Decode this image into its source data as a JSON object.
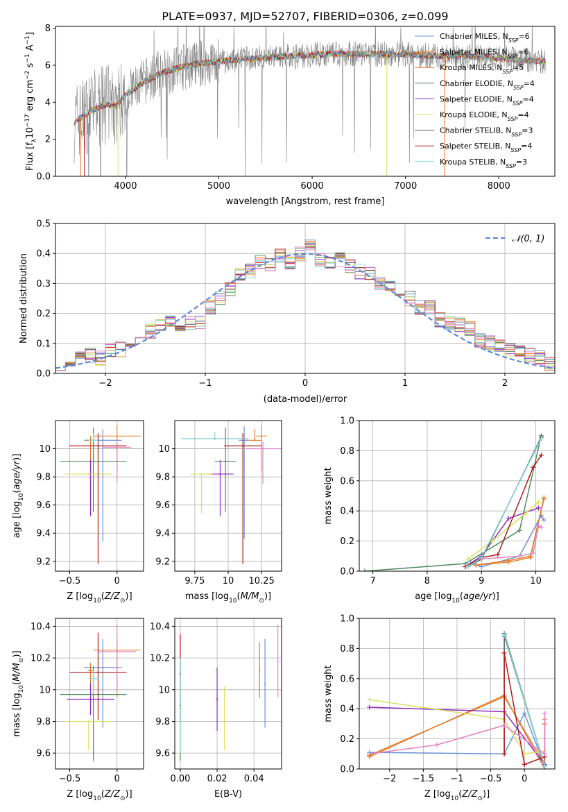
{
  "figure_title": "PLATE=0937, MJD=52707, FIBERID=0306, z=0.099",
  "colors": {
    "Chabrier MILES": "#6a8fd8",
    "Salpeter MILES": "#e8893c",
    "Kroupa MILES": "#e07a2a",
    "Chabrier ELODIE": "#4c8a5a",
    "Salpeter ELODIE": "#8f2fbf",
    "Kroupa ELODIE": "#d8e060",
    "Chabrier STELIB": "#555555",
    "Salpeter STELIB": "#b01a1a",
    "Kroupa STELIB": "#7fd8d8",
    "pink": "#e383c0",
    "data": "#7f7f7f"
  },
  "chart_data": [
    {
      "type": "line",
      "title": "PLATE=0937, MJD=52707, FIBERID=0306, z=0.099",
      "xlabel": "wavelength [Angstrom, rest frame]",
      "ylabel": "Flux [f_λ10^-17 erg cm^-2 s^-1 A^-1]",
      "xlim": [
        3250,
        8600
      ],
      "ylim": [
        0,
        8.1
      ],
      "xticks": [
        4000,
        5000,
        6000,
        7000,
        8000
      ],
      "yticks": [
        0,
        2,
        4,
        6,
        8
      ],
      "legend_position": "top-right",
      "legend": [
        {
          "label": "Chabrier MILES, N_SSP=6",
          "text": "Chabrier MILES, N",
          "sub": "SSP",
          "tail": "=6",
          "color": "#6a8fd8"
        },
        {
          "label": "Salpeter MILES, N_SSP=6",
          "text": "Salpeter MILES, N",
          "sub": "SSP",
          "tail": "=6",
          "color": "#e8893c"
        },
        {
          "label": "Kroupa MILES, N_SSP=5",
          "text": "Kroupa MILES, N",
          "sub": "SSP",
          "tail": "=5",
          "color": "#e07a2a"
        },
        {
          "label": "Chabrier ELODIE, N_SSP=4",
          "text": "Chabrier ELODIE, N",
          "sub": "SSP",
          "tail": "=4",
          "color": "#4c8a5a"
        },
        {
          "label": "Salpeter ELODIE, N_SSP=4",
          "text": "Salpeter ELODIE, N",
          "sub": "SSP",
          "tail": "=4",
          "color": "#8f2fbf"
        },
        {
          "label": "Kroupa ELODIE, N_SSP=4",
          "text": "Kroupa ELODIE, N",
          "sub": "SSP",
          "tail": "=4",
          "color": "#d8e060"
        },
        {
          "label": "Chabrier STELIB, N_SSP=3",
          "text": "Chabrier STELIB, N",
          "sub": "SSP",
          "tail": "=3",
          "color": "#555555"
        },
        {
          "label": "Salpeter STELIB, N_SSP=4",
          "text": "Salpeter STELIB, N",
          "sub": "SSP",
          "tail": "=4",
          "color": "#b01a1a"
        },
        {
          "label": "Kroupa STELIB, N_SSP=3",
          "text": "Kroupa STELIB, N",
          "sub": "SSP",
          "tail": "=3",
          "color": "#7fd8d8"
        }
      ],
      "continuum": {
        "x": [
          3450,
          3650,
          3800,
          3900,
          4000,
          4200,
          4400,
          4600,
          4800,
          5000,
          5200,
          5500,
          5800,
          6100,
          6400,
          6700,
          7000,
          7300,
          7600,
          7900,
          8200,
          8500
        ],
        "y": [
          2.9,
          3.6,
          3.9,
          3.8,
          4.4,
          5.1,
          5.6,
          5.9,
          6.1,
          6.2,
          6.3,
          6.4,
          6.5,
          6.6,
          6.6,
          6.6,
          6.6,
          6.5,
          6.5,
          6.4,
          6.3,
          6.2
        ]
      }
    },
    {
      "type": "line",
      "xlabel": "(data-model)/error",
      "ylabel": "Normed distribution",
      "xlim": [
        -2.5,
        2.5
      ],
      "ylim": [
        0,
        0.5
      ],
      "xticks": [
        -2,
        -1,
        0,
        1,
        2
      ],
      "yticks": [
        0.0,
        0.1,
        0.2,
        0.3,
        0.4,
        0.5
      ],
      "legend_position": "top-right",
      "legend": [
        {
          "label": "𝒩(0, 1)",
          "color": "#5b87d9",
          "style": "dashed"
        }
      ],
      "bin_width": 0.1,
      "bins_x": [
        -2.5,
        -2.4,
        -2.3,
        -2.2,
        -2.1,
        -2.0,
        -1.9,
        -1.8,
        -1.7,
        -1.6,
        -1.5,
        -1.4,
        -1.3,
        -1.2,
        -1.1,
        -1.0,
        -0.9,
        -0.8,
        -0.7,
        -0.6,
        -0.5,
        -0.4,
        -0.3,
        -0.2,
        -0.1,
        0.0,
        0.1,
        0.2,
        0.3,
        0.4,
        0.5,
        0.6,
        0.7,
        0.8,
        0.9,
        1.0,
        1.1,
        1.2,
        1.3,
        1.4,
        1.5,
        1.6,
        1.7,
        1.8,
        1.9,
        2.0,
        2.1,
        2.2,
        2.3,
        2.4
      ],
      "hist_mean": [
        0.03,
        0.04,
        0.06,
        0.06,
        0.05,
        0.08,
        0.08,
        0.1,
        0.12,
        0.14,
        0.16,
        0.17,
        0.16,
        0.17,
        0.17,
        0.22,
        0.25,
        0.28,
        0.33,
        0.34,
        0.37,
        0.36,
        0.39,
        0.37,
        0.4,
        0.43,
        0.38,
        0.37,
        0.38,
        0.36,
        0.34,
        0.33,
        0.3,
        0.3,
        0.28,
        0.25,
        0.22,
        0.22,
        0.18,
        0.17,
        0.16,
        0.15,
        0.11,
        0.1,
        0.09,
        0.08,
        0.07,
        0.06,
        0.05,
        0.03
      ]
    },
    {
      "type": "scatter",
      "xlabel": "Z [log10(Z/Z⊙)]",
      "ylabel": "age [log10(age/yr)]",
      "xlim": [
        -0.65,
        0.28
      ],
      "ylim": [
        9.13,
        10.2
      ],
      "xticks": [
        -0.5,
        0.0
      ],
      "yticks": [
        9.2,
        9.4,
        9.6,
        9.8,
        10.0
      ],
      "errorbars": [
        {
          "model": "Chabrier MILES",
          "x": -0.15,
          "dx": 0.2,
          "y": 10.06,
          "dy": [
            0.72,
            0.08
          ]
        },
        {
          "model": "Salpeter MILES",
          "x": 0.0,
          "dx": 0.25,
          "y": 10.09,
          "dy": [
            0.25,
            0.08
          ]
        },
        {
          "model": "Kroupa MILES",
          "x": -0.28,
          "dx": 0.05,
          "y": 10.06,
          "dy": [
            0.52,
            0.03
          ]
        },
        {
          "model": "Chabrier ELODIE",
          "x": -0.25,
          "dx": 0.35,
          "y": 9.91,
          "dy": [
            0.36,
            0.24
          ]
        },
        {
          "model": "Salpeter ELODIE",
          "x": -0.28,
          "dx": 0.02,
          "y": 9.82,
          "dy": [
            0.3,
            0.1
          ]
        },
        {
          "model": "Kroupa ELODIE",
          "x": -0.3,
          "dx": 0.25,
          "y": 9.82,
          "dy": [
            0.0,
            0.0
          ]
        },
        {
          "model": "Salpeter STELIB",
          "x": -0.2,
          "dx": 0.3,
          "y": 10.02,
          "dy": [
            0.84,
            0.09
          ]
        },
        {
          "model": "Kroupa STELIB",
          "x": -0.25,
          "dx": 0.05,
          "y": 10.06,
          "dy": [
            0.0,
            0.05
          ]
        },
        {
          "model": "pink",
          "x": 0.0,
          "dx": 0.15,
          "y": 10.01,
          "dy": [
            0.25,
            0.05
          ]
        }
      ]
    },
    {
      "type": "scatter",
      "xlabel": "mass [log10(M/M⊙)]",
      "ylabel": "",
      "xlim": [
        9.6,
        10.4
      ],
      "ylim": [
        9.13,
        10.2
      ],
      "xticks": [
        9.75,
        10.0,
        10.25
      ],
      "yticks": [
        9.2,
        9.4,
        9.6,
        9.8,
        10.0
      ],
      "errorbars": [
        {
          "model": "Chabrier MILES",
          "x": 10.12,
          "dx": 0.04,
          "y": 10.06,
          "dy": [
            0.7,
            0.1
          ]
        },
        {
          "model": "Salpeter MILES",
          "x": 10.25,
          "dx": 0.04,
          "y": 10.09,
          "dy": [
            0.25,
            0.08
          ]
        },
        {
          "model": "Kroupa MILES",
          "x": 10.2,
          "dx": 0.05,
          "y": 10.06,
          "dy": [
            0.0,
            0.08
          ]
        },
        {
          "model": "Chabrier ELODIE",
          "x": 9.98,
          "dx": 0.08,
          "y": 9.91,
          "dy": [
            0.36,
            0.24
          ]
        },
        {
          "model": "Salpeter ELODIE",
          "x": 9.94,
          "dx": 0.1,
          "y": 9.82,
          "dy": [
            0.3,
            0.1
          ]
        },
        {
          "model": "Kroupa ELODIE",
          "x": 9.8,
          "dx": 0.08,
          "y": 9.82,
          "dy": [
            0.28,
            0.0
          ]
        },
        {
          "model": "Chabrier STELIB",
          "x": 9.9,
          "dx": 0.25,
          "y": 10.07,
          "dy": [
            0.0,
            0.0
          ]
        },
        {
          "model": "Salpeter STELIB",
          "x": 10.11,
          "dx": 0.14,
          "y": 10.02,
          "dy": [
            0.84,
            0.09
          ]
        },
        {
          "model": "Kroupa STELIB",
          "x": 9.9,
          "dx": 0.25,
          "y": 10.07,
          "dy": [
            0.0,
            0.05
          ]
        },
        {
          "model": "pink",
          "x": 10.26,
          "dx": 0.15,
          "y": 10.0,
          "dy": [
            0.25,
            0.05
          ]
        }
      ]
    },
    {
      "type": "line",
      "xlabel": "age [log10(age/yr)]",
      "ylabel": "mass weight",
      "xlim": [
        6.75,
        10.35
      ],
      "ylim": [
        0,
        1.0
      ],
      "xticks": [
        7,
        8,
        9,
        10
      ],
      "yticks": [
        0.0,
        0.2,
        0.4,
        0.6,
        0.8,
        1.0
      ],
      "series": [
        {
          "model": "Chabrier MILES",
          "x": [
            8.8,
            9.0,
            9.7,
            10.1,
            10.15
          ],
          "y": [
            0.05,
            0.03,
            0.1,
            0.37,
            0.34
          ]
        },
        {
          "model": "Salpeter MILES",
          "x": [
            8.9,
            9.5,
            9.9,
            10.15
          ],
          "y": [
            0.04,
            0.06,
            0.09,
            0.49
          ]
        },
        {
          "model": "Kroupa MILES",
          "x": [
            8.9,
            9.5,
            9.9,
            10.15
          ],
          "y": [
            0.04,
            0.07,
            0.1,
            0.48
          ]
        },
        {
          "model": "Chabrier ELODIE",
          "x": [
            6.85,
            8.7,
            9.7,
            10.1
          ],
          "y": [
            0.0,
            0.05,
            0.27,
            0.9
          ]
        },
        {
          "model": "Salpeter ELODIE",
          "x": [
            8.7,
            9.0,
            9.5,
            10.05
          ],
          "y": [
            0.03,
            0.1,
            0.35,
            0.42
          ]
        },
        {
          "model": "Kroupa ELODIE",
          "x": [
            8.75,
            9.2,
            9.8,
            10.05
          ],
          "y": [
            0.08,
            0.2,
            0.38,
            0.46
          ]
        },
        {
          "model": "Chabrier STELIB",
          "x": [
            8.75,
            9.0,
            10.1
          ],
          "y": [
            0.03,
            0.08,
            0.89
          ]
        },
        {
          "model": "Salpeter STELIB",
          "x": [
            8.7,
            9.0,
            9.3,
            9.95,
            10.1
          ],
          "y": [
            0.03,
            0.09,
            0.11,
            0.69,
            0.77
          ]
        },
        {
          "model": "Kroupa STELIB",
          "x": [
            8.75,
            9.0,
            10.1
          ],
          "y": [
            0.03,
            0.09,
            0.88
          ]
        },
        {
          "model": "pink",
          "x": [
            9.0,
            9.7,
            9.95,
            10.05,
            10.1
          ],
          "y": [
            0.08,
            0.1,
            0.12,
            0.3,
            0.29
          ]
        }
      ]
    },
    {
      "type": "scatter",
      "xlabel": "Z [log10(Z/Z⊙)]",
      "ylabel": "mass [log10(M/M⊙)]",
      "xlim": [
        -0.65,
        0.28
      ],
      "ylim": [
        9.5,
        10.45
      ],
      "xticks": [
        -0.5,
        0.0
      ],
      "yticks": [
        9.6,
        9.8,
        10.0,
        10.2,
        10.4
      ],
      "errorbars": [
        {
          "model": "Chabrier MILES",
          "x": -0.15,
          "dx": 0.2,
          "y": 10.14,
          "dy": [
            0.38,
            0.18
          ]
        },
        {
          "model": "Salpeter MILES",
          "x": 0.0,
          "dx": 0.25,
          "y": 10.25,
          "dy": [
            0.3,
            0.05
          ]
        },
        {
          "model": "Kroupa MILES",
          "x": -0.28,
          "dx": 0.03,
          "y": 10.12,
          "dy": [
            0.1,
            0.05
          ]
        },
        {
          "model": "Chabrier ELODIE",
          "x": -0.25,
          "dx": 0.35,
          "y": 9.97,
          "dy": [
            0.42,
            0.18
          ]
        },
        {
          "model": "Salpeter ELODIE",
          "x": -0.28,
          "dx": 0.25,
          "y": 9.94,
          "dy": [
            0.1,
            0.1
          ]
        },
        {
          "model": "Kroupa ELODIE",
          "x": -0.3,
          "dx": 0.25,
          "y": 9.8,
          "dy": [
            0.18,
            0.0
          ]
        },
        {
          "model": "Salpeter STELIB",
          "x": -0.2,
          "dx": 0.3,
          "y": 10.11,
          "dy": [
            0.3,
            0.25
          ]
        },
        {
          "model": "Kroupa STELIB",
          "x": -0.25,
          "dx": 0.05,
          "y": 10.07,
          "dy": [
            0.1,
            0.05
          ]
        },
        {
          "model": "pink",
          "x": 0.0,
          "dx": 0.2,
          "y": 10.24,
          "dy": [
            0.25,
            0.17
          ]
        }
      ]
    },
    {
      "type": "scatter",
      "xlabel": "E(B-V)",
      "ylabel": "",
      "xlim": [
        -0.003,
        0.055
      ],
      "ylim": [
        9.5,
        10.45
      ],
      "xticks": [
        0.0,
        0.02,
        0.04
      ],
      "xticklabels": [
        "0.00",
        "0.02",
        "0.04"
      ],
      "yticks": [
        9.6,
        9.8,
        10.0,
        10.2,
        10.4
      ],
      "errorbars": [
        {
          "model": "Salpeter STELIB",
          "x": 0.0,
          "y": 10.1,
          "dy": [
            0.3,
            0.25
          ]
        },
        {
          "model": "Chabrier ELODIE",
          "x": 0.0,
          "y": 9.9,
          "dy": [
            0.35,
            0.3
          ]
        },
        {
          "model": "Kroupa STELIB",
          "x": 0.0,
          "y": 9.95,
          "dy": [
            0.35,
            0.25
          ]
        },
        {
          "model": "Salpeter ELODIE",
          "x": 0.02,
          "y": 9.94,
          "dy": [
            0.2,
            0.2
          ]
        },
        {
          "model": "Kroupa ELODIE",
          "x": 0.024,
          "y": 9.8,
          "dy": [
            0.18,
            0.22
          ]
        },
        {
          "model": "Kroupa MILES",
          "x": 0.043,
          "y": 10.12,
          "dy": [
            0.17,
            0.18
          ]
        },
        {
          "model": "Chabrier MILES",
          "x": 0.046,
          "y": 10.04,
          "dy": [
            0.28,
            0.28
          ]
        },
        {
          "model": "pink",
          "x": 0.053,
          "y": 10.18,
          "dy": [
            0.23,
            0.23
          ]
        }
      ]
    },
    {
      "type": "line",
      "xlabel": "Z [log10(Z/Z⊙)]",
      "ylabel": "mass weight",
      "xlim": [
        -2.45,
        0.45
      ],
      "ylim": [
        0,
        1.0
      ],
      "xticks": [
        -2.0,
        -1.5,
        -1.0,
        -0.5,
        0.0
      ],
      "yticks": [
        0.0,
        0.2,
        0.4,
        0.6,
        0.8,
        1.0
      ],
      "series": [
        {
          "model": "Chabrier MILES",
          "x": [
            -2.3,
            -0.3,
            0.0,
            0.3
          ],
          "y": [
            0.11,
            0.1,
            0.37,
            0.02
          ]
        },
        {
          "model": "Salpeter MILES",
          "x": [
            -2.3,
            -0.3,
            0.3,
            0.3
          ],
          "y": [
            0.08,
            0.49,
            0.0,
            0.33
          ]
        },
        {
          "model": "Kroupa MILES",
          "x": [
            -2.3,
            -0.3,
            0.3,
            0.3
          ],
          "y": [
            0.09,
            0.48,
            0.03,
            0.3
          ]
        },
        {
          "model": "Chabrier ELODIE",
          "x": [
            -0.3,
            0.3
          ],
          "y": [
            0.88,
            0.02
          ]
        },
        {
          "model": "Salpeter ELODIE",
          "x": [
            -2.3,
            -0.3,
            0.3
          ],
          "y": [
            0.41,
            0.38,
            0.03
          ]
        },
        {
          "model": "Kroupa ELODIE",
          "x": [
            -2.3,
            -0.3,
            0.0,
            0.3
          ],
          "y": [
            0.46,
            0.33,
            0.1,
            0.12
          ]
        },
        {
          "model": "Chabrier STELIB",
          "x": [
            -0.3,
            -0.3,
            0.3
          ],
          "y": [
            0.1,
            0.9,
            0.02
          ]
        },
        {
          "model": "Salpeter STELIB",
          "x": [
            -0.3,
            -0.3,
            0.0,
            0.3
          ],
          "y": [
            0.1,
            0.77,
            0.03,
            0.08
          ]
        },
        {
          "model": "Kroupa STELIB",
          "x": [
            -0.3,
            0.3
          ],
          "y": [
            0.89,
            0.02
          ]
        },
        {
          "model": "pink",
          "x": [
            -2.3,
            -1.3,
            -0.3,
            0.3,
            0.3
          ],
          "y": [
            0.1,
            0.16,
            0.29,
            0.1,
            0.37
          ]
        }
      ]
    }
  ]
}
